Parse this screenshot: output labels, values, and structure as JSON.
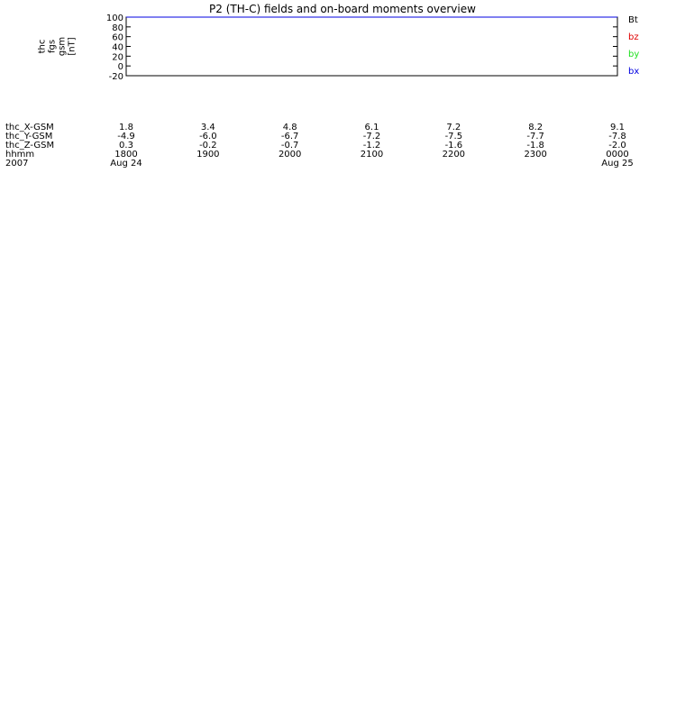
{
  "title": "P2 (TH-C) fields and on-board moments overview",
  "colors": {
    "black": "#000000",
    "red": "#e00000",
    "green": "#20e020",
    "blue": "#0000e0",
    "darkred": "#a00000",
    "yellow": "#ffff00",
    "frame": "#000000"
  },
  "chart_data": [
    {
      "type": "line",
      "id": "fgs_gsm",
      "ylabel_lines": [
        "thc",
        "fgs",
        "gsm",
        "[nT]"
      ],
      "ylim": [
        -20,
        100
      ],
      "ticks": [
        {
          "v": 100,
          "t": "100"
        },
        {
          "v": 80,
          "t": "80"
        },
        {
          "v": 60,
          "t": "60"
        },
        {
          "v": 40,
          "t": "40"
        },
        {
          "v": 20,
          "t": "20"
        },
        {
          "v": 0,
          "t": "0"
        },
        {
          "v": -20,
          "t": "-20"
        }
      ],
      "series": [
        {
          "name": "Bt",
          "color": "black",
          "noise": 0,
          "x": [
            0,
            0.1,
            0.2,
            0.3,
            0.4,
            0.5,
            0.6,
            0.7,
            0.8,
            0.9,
            1.0
          ],
          "y": [
            100,
            100,
            100,
            100,
            100,
            100,
            100,
            100,
            100,
            100,
            100
          ]
        },
        {
          "name": "bz",
          "color": "red",
          "noise": 0,
          "x": [
            0,
            0.1,
            0.2,
            0.3,
            0.4,
            0.5,
            0.6,
            0.7,
            0.8,
            0.9,
            1.0
          ],
          "y": [
            100,
            100,
            100,
            100,
            100,
            100,
            100,
            100,
            100,
            100,
            100
          ]
        },
        {
          "name": "by",
          "color": "green",
          "noise": 0,
          "x": [
            0,
            0.1,
            0.2,
            0.3,
            0.4,
            0.5,
            0.6,
            0.7,
            0.8,
            0.9,
            1.0
          ],
          "y": [
            100,
            100,
            100,
            100,
            100,
            100,
            100,
            100,
            100,
            100,
            100
          ]
        },
        {
          "name": "bx",
          "color": "blue",
          "noise": 0,
          "x": [
            0,
            0.1,
            0.2,
            0.3,
            0.4,
            0.5,
            0.6,
            0.7,
            0.8,
            0.9,
            1.0
          ],
          "y": [
            100,
            100,
            100,
            100,
            100,
            100,
            100,
            100,
            100,
            100,
            100
          ]
        }
      ]
    }
  ],
  "time_axis": {
    "rows": [
      {
        "label": "thc_X-GSM",
        "values": [
          "1.8",
          "3.4",
          "4.8",
          "6.1",
          "7.2",
          "8.2",
          "9.1"
        ]
      },
      {
        "label": "thc_Y-GSM",
        "values": [
          "-4.9",
          "-6.0",
          "-6.7",
          "-7.2",
          "-7.5",
          "-7.7",
          "-7.8"
        ]
      },
      {
        "label": "thc_Z-GSM",
        "values": [
          "0.3",
          "-0.2",
          "-0.7",
          "-1.2",
          "-1.6",
          "-1.8",
          "-2.0"
        ]
      },
      {
        "label": "hhmm",
        "values": [
          "1800",
          "1900",
          "2000",
          "2100",
          "2200",
          "2300",
          "0000"
        ]
      },
      {
        "label": "2007",
        "values": [
          "Aug 24",
          "",
          "",
          "",
          "",
          "",
          "Aug 25"
        ]
      }
    ]
  }
}
